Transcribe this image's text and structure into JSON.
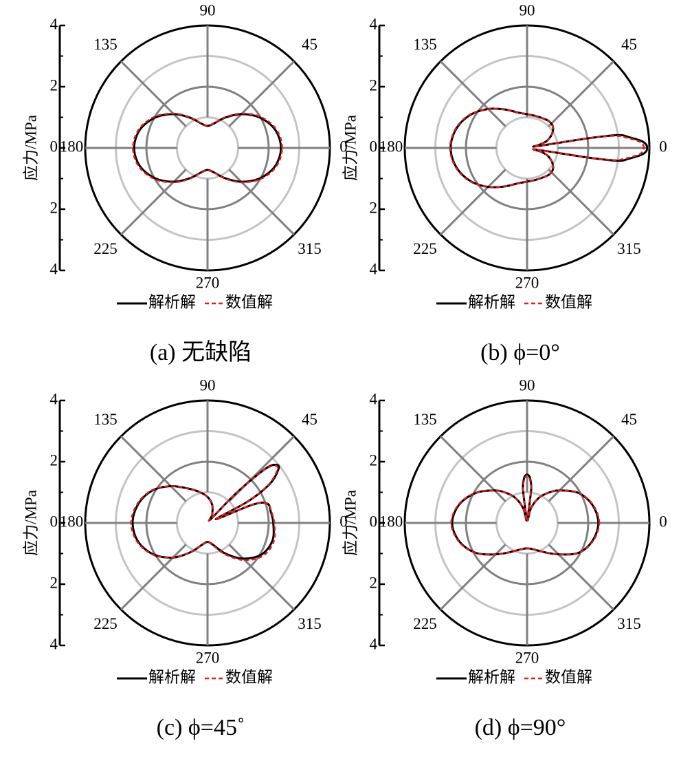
{
  "chart_data": [
    {
      "type": "polar",
      "caption": "(a)  无缺陷",
      "rlabel": "应力/MPa",
      "rlim": [
        0,
        4
      ],
      "rticks": [
        0,
        2,
        4
      ],
      "rminor": [
        1,
        3
      ],
      "thetaticks": [
        0,
        45,
        90,
        135,
        180,
        225,
        270,
        315
      ],
      "theta": [
        0,
        15,
        30,
        45,
        60,
        75,
        90,
        105,
        120,
        135,
        150,
        165,
        180,
        195,
        210,
        225,
        240,
        255,
        270,
        285,
        300,
        315,
        330,
        345
      ],
      "series": [
        {
          "name": "解析解",
          "color": "#000000",
          "linestyle": "solid",
          "values": [
            2.4,
            2.29,
            1.98,
            1.56,
            1.14,
            0.83,
            0.72,
            0.83,
            1.14,
            1.56,
            1.98,
            2.29,
            2.4,
            2.29,
            1.98,
            1.56,
            1.14,
            0.83,
            0.72,
            0.83,
            1.14,
            1.56,
            1.98,
            2.29
          ]
        },
        {
          "name": "数值解",
          "color": "#e41a1c",
          "linestyle": "dashed",
          "values": [
            2.44,
            2.33,
            2.02,
            1.59,
            1.16,
            0.84,
            0.73,
            0.84,
            1.16,
            1.59,
            2.02,
            2.33,
            2.44,
            2.33,
            2.02,
            1.59,
            1.16,
            0.84,
            0.73,
            0.84,
            1.16,
            1.59,
            2.02,
            2.33
          ]
        }
      ]
    },
    {
      "type": "polar",
      "caption": "(b) ϕ=0°",
      "rlabel": "应力/MPa",
      "rlim": [
        0,
        4
      ],
      "rticks": [
        0,
        2,
        4
      ],
      "rminor": [
        1,
        3
      ],
      "thetaticks": [
        0,
        45,
        90,
        135,
        180,
        225,
        270,
        315
      ],
      "theta": [
        0,
        3,
        6,
        8,
        9,
        10,
        15,
        20,
        30,
        40,
        50,
        60,
        75,
        90,
        105,
        120,
        135,
        150,
        165,
        180,
        195,
        210,
        225,
        240,
        255,
        270,
        285,
        300,
        310,
        320,
        330,
        340,
        345,
        350,
        351,
        352,
        354,
        357
      ],
      "series": [
        {
          "name": "解析解",
          "color": "#000000",
          "linestyle": "solid",
          "values": [
            3.93,
            3.8,
            3.35,
            3.0,
            2.0,
            0.3,
            0.45,
            0.7,
            0.95,
            1.1,
            1.13,
            1.1,
            1.08,
            1.1,
            1.2,
            1.45,
            1.8,
            2.15,
            2.4,
            2.5,
            2.4,
            2.15,
            1.8,
            1.45,
            1.2,
            1.1,
            1.08,
            1.1,
            1.13,
            1.1,
            0.95,
            0.7,
            0.45,
            0.3,
            2.0,
            3.0,
            3.35,
            3.8
          ]
        },
        {
          "name": "数值解",
          "color": "#e41a1c",
          "linestyle": "dashed",
          "values": [
            3.82,
            3.7,
            3.25,
            2.85,
            1.9,
            0.3,
            0.45,
            0.7,
            0.95,
            1.1,
            1.13,
            1.1,
            1.08,
            1.1,
            1.2,
            1.45,
            1.8,
            2.17,
            2.42,
            2.52,
            2.42,
            2.17,
            1.8,
            1.45,
            1.2,
            1.1,
            1.08,
            1.1,
            1.13,
            1.1,
            0.95,
            0.7,
            0.45,
            0.3,
            1.9,
            2.85,
            3.25,
            3.7
          ]
        }
      ]
    },
    {
      "type": "polar",
      "caption": "(c) ϕ=45˚",
      "rlabel": "应力/MPa",
      "rlim": [
        0,
        4
      ],
      "rticks": [
        0,
        2,
        4
      ],
      "rminor": [
        1,
        3
      ],
      "thetaticks": [
        0,
        45,
        90,
        135,
        180,
        225,
        270,
        315
      ],
      "theta": [
        0,
        10,
        18,
        22,
        24,
        28,
        32,
        37,
        40,
        43,
        46,
        50,
        60,
        75,
        90,
        105,
        120,
        135,
        150,
        165,
        180,
        195,
        210,
        225,
        240,
        255,
        270,
        285,
        300,
        315,
        330,
        345
      ],
      "series": [
        {
          "name": "解析解",
          "color": "#000000",
          "linestyle": "solid",
          "values": [
            2.15,
            2.1,
            2.05,
            1.6,
            0.3,
            1.5,
            2.4,
            2.9,
            2.95,
            2.6,
            1.4,
            0.15,
            0.3,
            0.6,
            0.85,
            1.05,
            1.3,
            1.7,
            2.1,
            2.35,
            2.45,
            2.35,
            2.05,
            1.6,
            1.1,
            0.75,
            0.62,
            0.75,
            1.15,
            1.65,
            2.05,
            2.2
          ]
        },
        {
          "name": "数值解",
          "color": "#e41a1c",
          "linestyle": "dashed",
          "values": [
            2.18,
            2.12,
            2.05,
            1.6,
            0.3,
            1.5,
            2.35,
            2.85,
            2.9,
            2.55,
            1.4,
            0.15,
            0.3,
            0.6,
            0.85,
            1.05,
            1.3,
            1.7,
            2.12,
            2.38,
            2.5,
            2.38,
            2.07,
            1.6,
            1.1,
            0.75,
            0.62,
            0.78,
            1.2,
            1.72,
            2.12,
            2.25
          ]
        }
      ]
    },
    {
      "type": "polar",
      "caption": "(d) ϕ=90°",
      "rlabel": "应力/MPa",
      "rlim": [
        0,
        4
      ],
      "rticks": [
        0,
        2,
        4
      ],
      "rminor": [
        1,
        3
      ],
      "thetaticks": [
        0,
        45,
        90,
        135,
        180,
        225,
        270,
        315
      ],
      "theta": [
        0,
        15,
        30,
        45,
        55,
        65,
        75,
        80,
        83,
        86,
        88,
        90,
        92,
        94,
        97,
        100,
        105,
        115,
        125,
        135,
        150,
        165,
        180,
        195,
        210,
        225,
        240,
        255,
        270,
        285,
        300,
        315,
        330,
        345
      ],
      "series": [
        {
          "name": "解析解",
          "color": "#000000",
          "linestyle": "solid",
          "values": [
            2.33,
            2.22,
            1.95,
            1.5,
            1.2,
            0.9,
            0.5,
            0.1,
            1.1,
            1.45,
            1.55,
            1.58,
            1.55,
            1.45,
            1.1,
            0.1,
            0.5,
            0.9,
            1.2,
            1.5,
            1.95,
            2.3,
            2.45,
            2.3,
            1.95,
            1.45,
            1.1,
            0.9,
            0.83,
            0.9,
            1.1,
            1.45,
            1.95,
            2.22
          ]
        },
        {
          "name": "数值解",
          "color": "#e41a1c",
          "linestyle": "dashed",
          "values": [
            2.36,
            2.24,
            1.96,
            1.5,
            1.2,
            0.9,
            0.5,
            0.1,
            1.05,
            1.4,
            1.5,
            1.55,
            1.5,
            1.4,
            1.05,
            0.1,
            0.5,
            0.9,
            1.2,
            1.5,
            1.96,
            2.32,
            2.48,
            2.32,
            1.96,
            1.45,
            1.1,
            0.9,
            0.83,
            0.9,
            1.1,
            1.45,
            1.96,
            2.24
          ]
        }
      ]
    }
  ]
}
